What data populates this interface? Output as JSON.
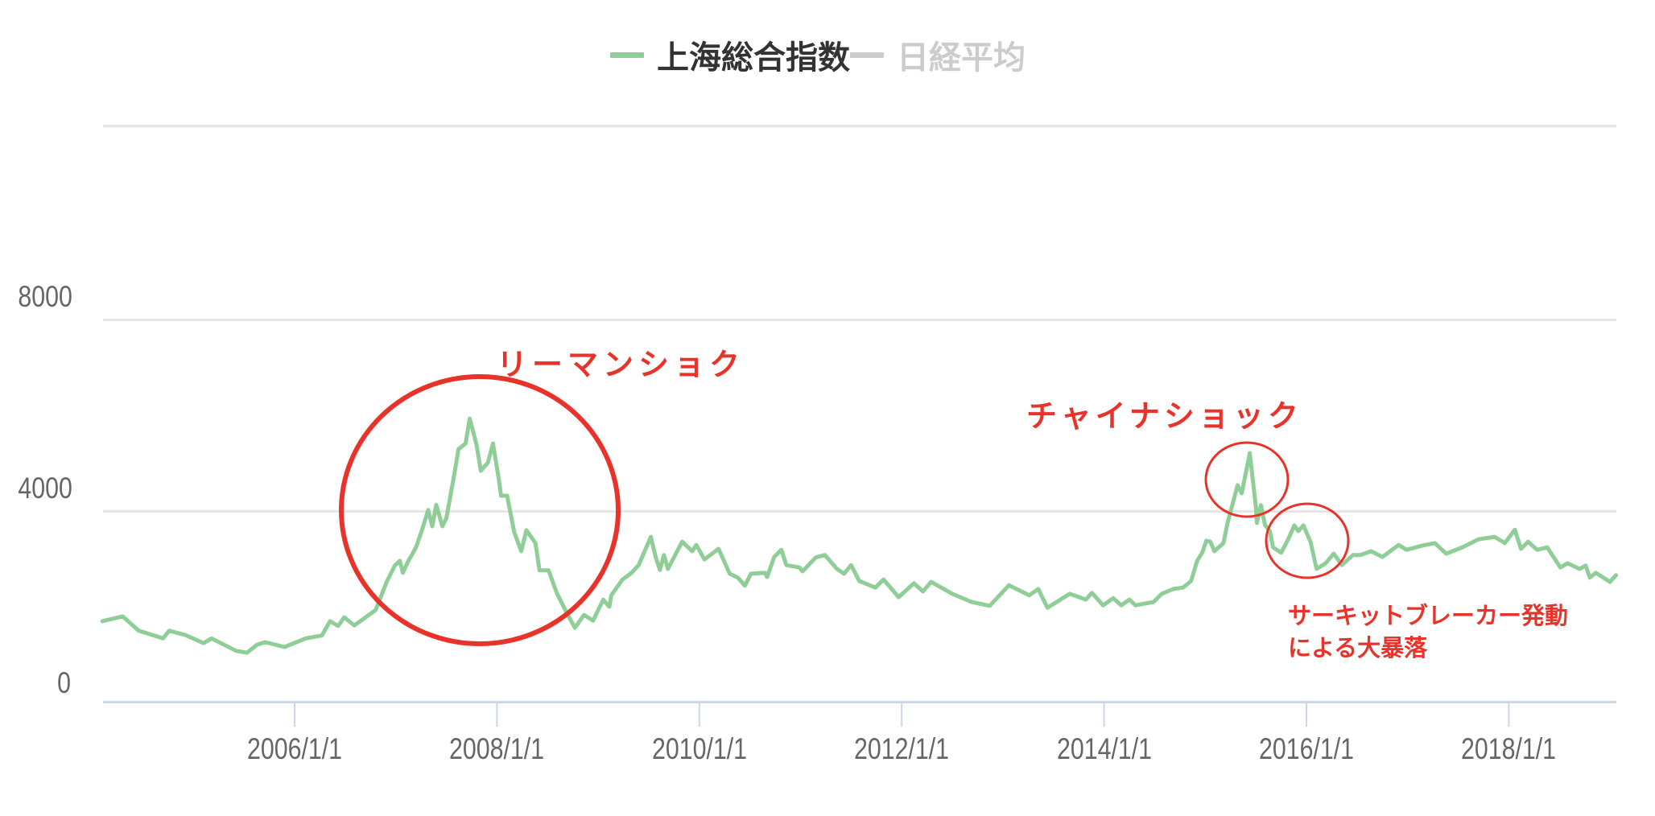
{
  "legend": {
    "items": [
      {
        "label": "上海総合指数",
        "color": "#90CE98",
        "text_color": "#333333",
        "active": true
      },
      {
        "label": "日経平均",
        "color": "#CCCCCC",
        "text_color": "#CCCCCC",
        "active": false
      }
    ]
  },
  "annotations": {
    "lehman": {
      "label": "リーマンショク",
      "color": "#E8332A"
    },
    "china": {
      "label": "チャイナショック",
      "color": "#E8332A"
    },
    "circuit_line1": "サーキットブレーカー発動",
    "circuit_line2": "による大暴落"
  },
  "colors": {
    "series": "#90CE98",
    "annotation": "#E8332A",
    "grid": "#E6E6E6",
    "axis": "#CCD6EB",
    "tick_label": "#666666"
  },
  "chart_data": {
    "type": "line",
    "title": "",
    "xlabel": "",
    "ylabel": "",
    "legend_position": "top",
    "grid": true,
    "ylim": [
      0,
      12000
    ],
    "yticks": [
      0,
      4000,
      8000
    ],
    "ytick_labels": [
      "0",
      "4000",
      "8000"
    ],
    "xlim": [
      2004.09,
      2019.06
    ],
    "xticks": [
      2006,
      2008,
      2010,
      2012,
      2014,
      2016,
      2018
    ],
    "xtick_labels": [
      "2006/1/1",
      "2008/1/1",
      "2010/1/1",
      "2012/1/1",
      "2014/1/1",
      "2016/1/1",
      "2018/1/1"
    ],
    "legend": [
      "上海総合指数",
      "日経平均"
    ],
    "series": [
      {
        "name": "上海総合指数",
        "visible": true,
        "color": "#90CE98",
        "x": [
          2004.1,
          2004.3,
          2004.46,
          2004.7,
          2004.76,
          2004.92,
          2005.1,
          2005.18,
          2005.42,
          2005.53,
          2005.63,
          2005.71,
          2005.9,
          2006.11,
          2006.27,
          2006.35,
          2006.43,
          2006.49,
          2006.59,
          2006.8,
          2006.91,
          2006.99,
          2007.04,
          2007.07,
          2007.12,
          2007.2,
          2007.26,
          2007.32,
          2007.36,
          2007.4,
          2007.46,
          2007.5,
          2007.57,
          2007.62,
          2007.69,
          2007.73,
          2007.76,
          2007.8,
          2007.84,
          2007.91,
          2007.96,
          2008.02,
          2008.04,
          2008.1,
          2008.17,
          2008.24,
          2008.29,
          2008.38,
          2008.42,
          2008.51,
          2008.59,
          2008.7,
          2008.77,
          2008.86,
          2008.95,
          2009.05,
          2009.11,
          2009.13,
          2009.24,
          2009.33,
          2009.4,
          2009.52,
          2009.57,
          2009.61,
          2009.65,
          2009.69,
          2009.83,
          2009.93,
          2009.97,
          2010.05,
          2010.19,
          2010.3,
          2010.38,
          2010.45,
          2010.51,
          2010.65,
          2010.67,
          2010.74,
          2010.81,
          2010.86,
          2010.99,
          2011.02,
          2011.15,
          2011.24,
          2011.36,
          2011.43,
          2011.5,
          2011.58,
          2011.74,
          2011.82,
          2011.97,
          2012.12,
          2012.21,
          2012.29,
          2012.5,
          2012.69,
          2012.87,
          2013.06,
          2013.26,
          2013.35,
          2013.44,
          2013.66,
          2013.82,
          2013.88,
          2013.99,
          2014.09,
          2014.17,
          2014.25,
          2014.31,
          2014.49,
          2014.57,
          2014.68,
          2014.78,
          2014.86,
          2014.92,
          2014.97,
          2015.01,
          2015.05,
          2015.09,
          2015.18,
          2015.22,
          2015.32,
          2015.36,
          2015.44,
          2015.5,
          2015.51,
          2015.55,
          2015.59,
          2015.64,
          2015.67,
          2015.75,
          2015.82,
          2015.88,
          2015.92,
          2015.97,
          2016.04,
          2016.1,
          2016.19,
          2016.27,
          2016.35,
          2016.46,
          2016.53,
          2016.64,
          2016.75,
          2016.91,
          2016.99,
          2017.15,
          2017.27,
          2017.38,
          2017.54,
          2017.7,
          2017.86,
          2017.96,
          2018.06,
          2018.12,
          2018.19,
          2018.28,
          2018.38,
          2018.51,
          2018.58,
          2018.7,
          2018.76,
          2018.8,
          2018.86,
          2019.0,
          2019.06
        ],
        "values": [
          1700,
          1800,
          1500,
          1340,
          1500,
          1410,
          1240,
          1340,
          1080,
          1040,
          1210,
          1260,
          1160,
          1340,
          1400,
          1700,
          1600,
          1780,
          1610,
          1930,
          2520,
          2860,
          2960,
          2710,
          2940,
          3240,
          3610,
          4020,
          3680,
          4130,
          3680,
          3850,
          4660,
          5290,
          5410,
          5930,
          5700,
          5360,
          4840,
          5010,
          5410,
          4640,
          4320,
          4320,
          3560,
          3160,
          3600,
          3330,
          2760,
          2760,
          2290,
          1830,
          1560,
          1830,
          1710,
          2150,
          2000,
          2240,
          2570,
          2710,
          2870,
          3460,
          3030,
          2770,
          3080,
          2790,
          3360,
          3160,
          3290,
          2990,
          3210,
          2690,
          2610,
          2440,
          2690,
          2710,
          2620,
          3040,
          3190,
          2870,
          2820,
          2740,
          3030,
          3080,
          2790,
          2690,
          2870,
          2540,
          2400,
          2570,
          2200,
          2490,
          2320,
          2520,
          2270,
          2100,
          2020,
          2450,
          2240,
          2370,
          1980,
          2270,
          2150,
          2290,
          2030,
          2180,
          2030,
          2150,
          2030,
          2100,
          2270,
          2370,
          2400,
          2540,
          2960,
          3130,
          3380,
          3360,
          3160,
          3330,
          3750,
          4540,
          4370,
          5210,
          4080,
          3750,
          4120,
          3710,
          3580,
          3240,
          3130,
          3410,
          3700,
          3580,
          3700,
          3360,
          2790,
          2910,
          3110,
          2870,
          3080,
          3080,
          3160,
          3040,
          3290,
          3190,
          3280,
          3330,
          3110,
          3240,
          3410,
          3460,
          3330,
          3610,
          3210,
          3360,
          3190,
          3240,
          2820,
          2910,
          2790,
          2860,
          2610,
          2710,
          2520,
          2660
        ]
      },
      {
        "name": "日経平均",
        "visible": false,
        "color": "#CCCCCC",
        "x": [],
        "values": []
      }
    ],
    "annotations": [
      {
        "text": "リーマンショク",
        "shape": "ellipse",
        "around_x": 2007.8,
        "around_value": 4000
      },
      {
        "text": "チャイナショック",
        "shape": "ellipse",
        "around_x": 2015.45,
        "around_value": 4660
      },
      {
        "text": "サーキットブレーカー発動による大暴落",
        "shape": "ellipse",
        "around_x": 2016.0,
        "around_value": 3370
      }
    ]
  }
}
